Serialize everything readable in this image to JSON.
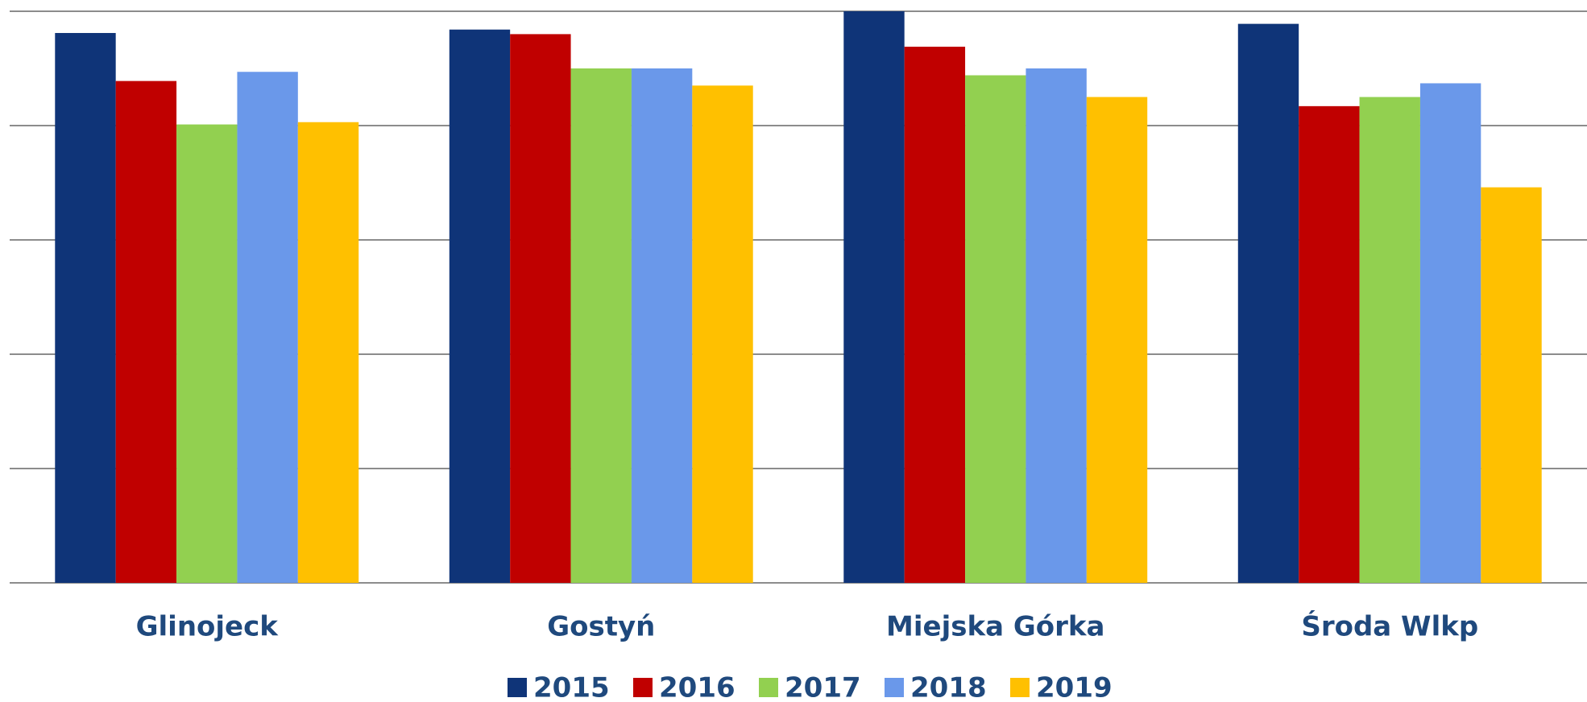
{
  "chart_data": {
    "type": "bar",
    "categories": [
      "Glinojeck",
      "Gostyń",
      "Miejska Górka",
      "Środa Wlkp"
    ],
    "series": [
      {
        "name": "2015",
        "color": "#0f3478",
        "values": [
          4.81,
          4.84,
          5.0,
          4.89
        ]
      },
      {
        "name": "2016",
        "color": "#c00000",
        "values": [
          4.39,
          4.8,
          4.69,
          4.17
        ]
      },
      {
        "name": "2017",
        "color": "#92d050",
        "values": [
          4.01,
          4.5,
          4.44,
          4.25
        ]
      },
      {
        "name": "2018",
        "color": "#6a98ea",
        "values": [
          4.47,
          4.5,
          4.5,
          4.37
        ]
      },
      {
        "name": "2019",
        "color": "#ffc000",
        "values": [
          4.03,
          4.35,
          4.25,
          3.46
        ]
      }
    ],
    "ylim": [
      0,
      5
    ],
    "yticks": [
      0,
      1,
      2,
      3,
      4,
      5
    ],
    "grid": true,
    "legend": "bottom"
  }
}
